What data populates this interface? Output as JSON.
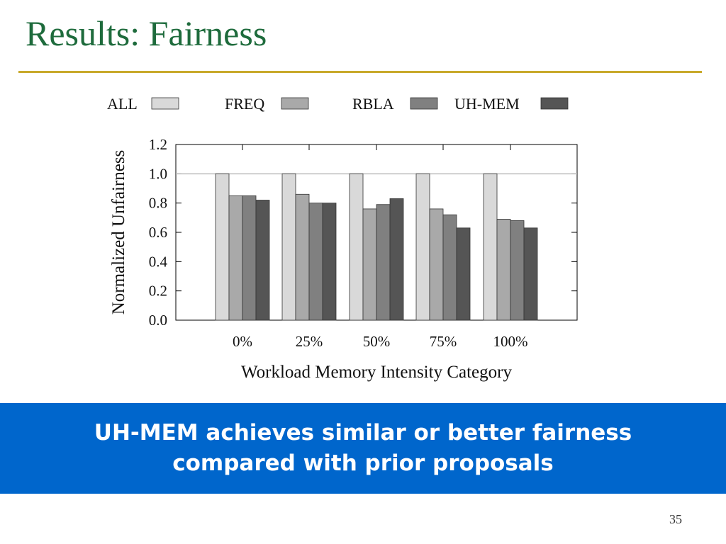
{
  "slide": {
    "title": "Results: Fairness",
    "banner_line1": "UH-MEM achieves similar or better fairness",
    "banner_line2": "compared with prior proposals",
    "page_number": "35"
  },
  "colors": {
    "title": "#1e6b3c",
    "rule": "#c8a92a",
    "banner_bg": "#0066cc",
    "series": [
      "#d9d9d9",
      "#a9a9a9",
      "#808080",
      "#555555"
    ]
  },
  "chart_data": {
    "type": "bar",
    "title": "",
    "xlabel": "Workload Memory Intensity Category",
    "ylabel": "Normalized Unfairness",
    "categories": [
      "0%",
      "25%",
      "50%",
      "75%",
      "100%"
    ],
    "ylim": [
      0,
      1.2
    ],
    "yticks": [
      "0.0",
      "0.2",
      "0.4",
      "0.6",
      "0.8",
      "1.0",
      "1.2"
    ],
    "legend_position": "top",
    "series": [
      {
        "name": "ALL",
        "values": [
          1.0,
          1.0,
          1.0,
          1.0,
          1.0
        ]
      },
      {
        "name": "FREQ",
        "values": [
          0.85,
          0.86,
          0.76,
          0.76,
          0.69
        ]
      },
      {
        "name": "RBLA",
        "values": [
          0.85,
          0.8,
          0.79,
          0.72,
          0.68
        ]
      },
      {
        "name": "UH-MEM",
        "values": [
          0.82,
          0.8,
          0.83,
          0.63,
          0.63
        ]
      }
    ]
  }
}
